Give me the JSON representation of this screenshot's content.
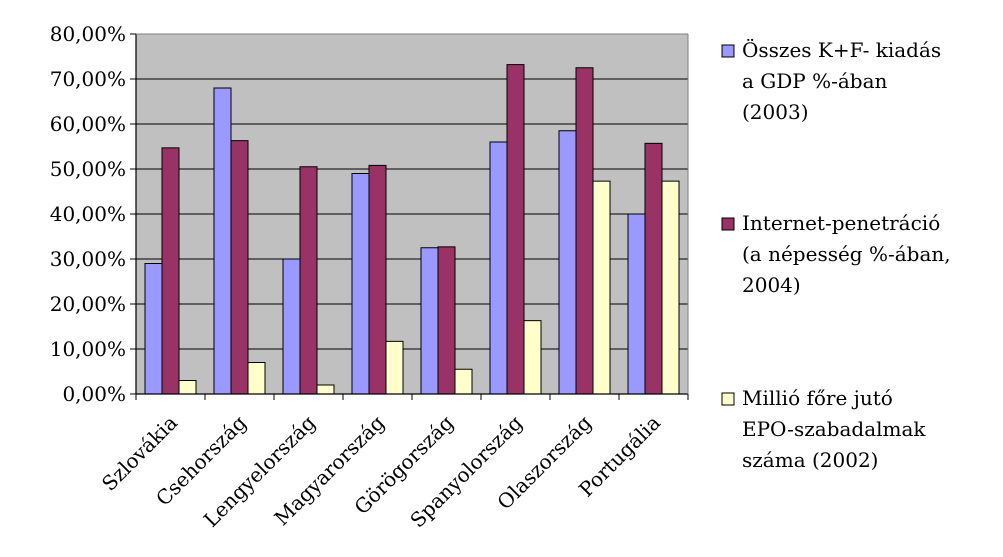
{
  "chart_data": {
    "type": "bar",
    "title": "",
    "xlabel": "",
    "ylabel": "",
    "ylim": [
      0,
      0.8
    ],
    "ytick_step": 0.1,
    "ytick_labels": [
      "0,00%",
      "10,00%",
      "20,00%",
      "30,00%",
      "40,00%",
      "50,00%",
      "60,00%",
      "70,00%",
      "80,00%"
    ],
    "grid": true,
    "plot_background": "#c0c0c0",
    "legend_position": "right",
    "categories": [
      "Szlovákia",
      "Csehország",
      "Lengyelország",
      "Magyarország",
      "Görögország",
      "Spanyolország",
      "Olaszország",
      "Portugália"
    ],
    "series": [
      {
        "name": "Összes K+F- kiadás a GDP %-ában (2003)",
        "legend_lines": [
          "Összes K+F- kiadás",
          "a GDP %-ában",
          "(2003)"
        ],
        "color": "#9999ff",
        "values": [
          0.29,
          0.68,
          0.3,
          0.49,
          0.325,
          0.56,
          0.585,
          0.4
        ]
      },
      {
        "name": "Internet-penetráció (a népesség %-ában, 2004)",
        "legend_lines": [
          "Internet-penetráció",
          "(a népesség %-ában,",
          "2004)"
        ],
        "color": "#993366",
        "values": [
          0.547,
          0.563,
          0.505,
          0.508,
          0.327,
          0.732,
          0.725,
          0.557
        ]
      },
      {
        "name": "Millió főre jutó EPO-szabadalmak száma (2002)",
        "legend_lines": [
          "Millió főre jutó",
          "EPO-szabadalmak",
          "száma (2002)"
        ],
        "color": "#ffffcc",
        "values": [
          0.03,
          0.07,
          0.02,
          0.117,
          0.055,
          0.163,
          0.473,
          0.473
        ]
      }
    ]
  }
}
